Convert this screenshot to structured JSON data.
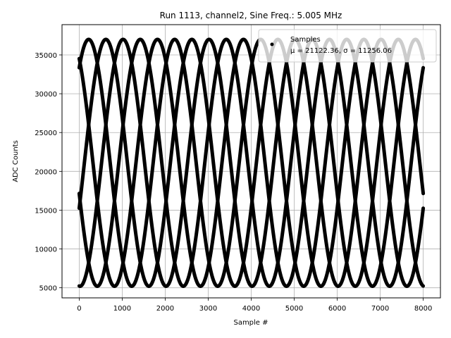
{
  "chart_data": {
    "type": "scatter",
    "title": "Run 1113, channel2, Sine Freq.: 5.005 MHz",
    "xlabel": "Sample #",
    "ylabel": "ADC Counts",
    "xlim": [
      -400,
      8400
    ],
    "ylim": [
      3700,
      38900
    ],
    "xticks": [
      0,
      1000,
      2000,
      3000,
      4000,
      5000,
      6000,
      7000,
      8000
    ],
    "yticks": [
      5000,
      10000,
      15000,
      20000,
      25000,
      30000,
      35000
    ],
    "grid": true,
    "legend_position": "top-right",
    "series": [
      {
        "name": "Samples",
        "legend_label": "μ = 21122.36, σ = 11256.06",
        "color": "#000000",
        "marker": "dot",
        "waveform": {
          "mean": 21100,
          "amplitude": 15900,
          "period_samples": 2000,
          "phases_deg": [
            0,
            72,
            144,
            216,
            288
          ],
          "x_range": [
            0,
            8000
          ],
          "first_peak_x": 620
        }
      }
    ]
  }
}
